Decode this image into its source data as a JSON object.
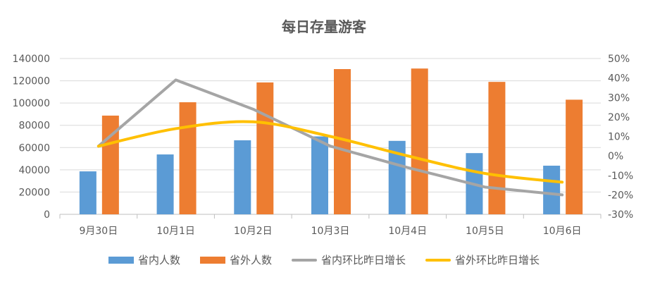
{
  "chart_data": {
    "type": "bar",
    "title": "每日存量游客",
    "categories": [
      "9月30日",
      "10月1日",
      "10月2日",
      "10月3日",
      "10月4日",
      "10月5日",
      "10月6日"
    ],
    "y_left": {
      "min": 0,
      "max": 140000,
      "step": 20000,
      "ticks": [
        "0",
        "20000",
        "40000",
        "60000",
        "80000",
        "100000",
        "120000",
        "140000"
      ]
    },
    "y_right": {
      "min": -30,
      "max": 50,
      "step": 10,
      "ticks": [
        "-30%",
        "-20%",
        "-10%",
        "0%",
        "10%",
        "20%",
        "30%",
        "40%",
        "50%"
      ]
    },
    "series": [
      {
        "name": "省内人数",
        "kind": "bar",
        "axis": "left",
        "color": "#5B9BD5",
        "values": [
          38600,
          53800,
          66500,
          70000,
          66000,
          55000,
          43700
        ]
      },
      {
        "name": "省外人数",
        "kind": "bar",
        "axis": "left",
        "color": "#ED7D31",
        "values": [
          88700,
          100700,
          118500,
          130500,
          131000,
          119000,
          103000
        ]
      },
      {
        "name": "省内环比昨日增长",
        "kind": "line",
        "axis": "right",
        "color": "#A5A5A5",
        "values": [
          5,
          39,
          24,
          5,
          -6,
          -16,
          -20
        ]
      },
      {
        "name": "省外环比昨日增长",
        "kind": "line",
        "axis": "right",
        "color": "#FFC000",
        "values": [
          5,
          14,
          17.5,
          10,
          0,
          -9,
          -13.5
        ]
      }
    ],
    "legend_position": "bottom",
    "grid": true
  }
}
